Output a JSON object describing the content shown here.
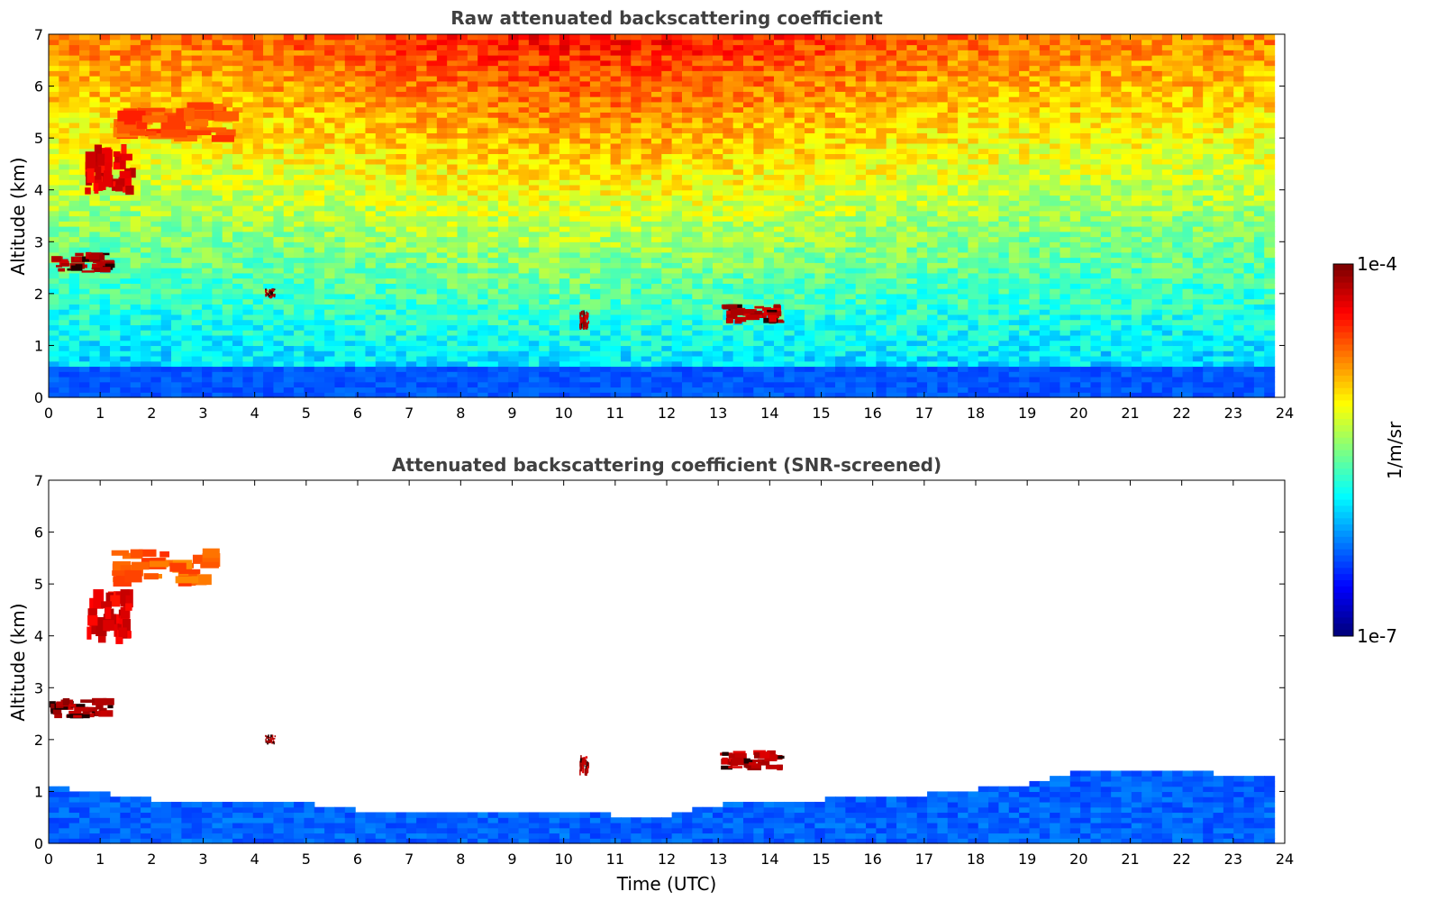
{
  "chart_data": [
    {
      "type": "heatmap",
      "title": "Raw attenuated backscattering coefficient",
      "xlabel": "",
      "ylabel": "Altitude (km)",
      "xlim": [
        0,
        24
      ],
      "ylim": [
        0,
        7
      ],
      "xticks": [
        "0",
        "1",
        "2",
        "3",
        "4",
        "5",
        "6",
        "7",
        "8",
        "9",
        "10",
        "11",
        "12",
        "13",
        "14",
        "15",
        "16",
        "17",
        "18",
        "19",
        "20",
        "21",
        "22",
        "23",
        "24"
      ],
      "yticks": [
        "0",
        "1",
        "2",
        "3",
        "4",
        "5",
        "6",
        "7"
      ],
      "data_end_time": 23.8,
      "colorscale": "jet",
      "features": [
        {
          "feature": "boundary layer",
          "t_range": [
            0,
            23.8
          ],
          "alt_range": [
            0,
            0.6
          ],
          "level": 0.2
        },
        {
          "feature": "noise background",
          "t_range": [
            0,
            23.8
          ],
          "alt_range": [
            0.6,
            7
          ],
          "level_range": [
            0.3,
            0.85
          ]
        },
        {
          "feature": "cloud layer",
          "t_range": [
            0,
            1.3
          ],
          "alt_range": [
            2.4,
            2.8
          ],
          "level": 0.97
        },
        {
          "feature": "cloud layer",
          "t_range": [
            0.7,
            1.7
          ],
          "alt_range": [
            3.9,
            4.9
          ],
          "level": 0.9
        },
        {
          "feature": "cloud layer",
          "t_range": [
            1.2,
            3.7
          ],
          "alt_range": [
            4.9,
            5.7
          ],
          "level": 0.8
        },
        {
          "feature": "cloud spot",
          "t_range": [
            4.2,
            4.4
          ],
          "alt_range": [
            1.9,
            2.1
          ],
          "level": 0.97
        },
        {
          "feature": "cloud spot",
          "t_range": [
            10.3,
            10.5
          ],
          "alt_range": [
            1.3,
            1.7
          ],
          "level": 0.95
        },
        {
          "feature": "cloud spot",
          "t_range": [
            13.0,
            14.3
          ],
          "alt_range": [
            1.4,
            1.8
          ],
          "level": 0.95
        }
      ]
    },
    {
      "type": "heatmap",
      "title": "Attenuated backscattering coefficient (SNR-screened)",
      "xlabel": "Time (UTC)",
      "ylabel": "Altitude (km)",
      "xlim": [
        0,
        24
      ],
      "ylim": [
        0,
        7
      ],
      "xticks": [
        "0",
        "1",
        "2",
        "3",
        "4",
        "5",
        "6",
        "7",
        "8",
        "9",
        "10",
        "11",
        "12",
        "13",
        "14",
        "15",
        "16",
        "17",
        "18",
        "19",
        "20",
        "21",
        "22",
        "23",
        "24"
      ],
      "yticks": [
        "0",
        "1",
        "2",
        "3",
        "4",
        "5",
        "6",
        "7"
      ],
      "data_end_time": 23.8,
      "colorscale": "jet",
      "boundary_layer_top": [
        [
          0,
          1.05
        ],
        [
          2,
          0.8
        ],
        [
          4,
          0.75
        ],
        [
          5,
          0.72
        ],
        [
          6,
          0.6
        ],
        [
          7,
          0.5
        ],
        [
          8,
          0.55
        ],
        [
          9,
          0.55
        ],
        [
          10,
          0.58
        ],
        [
          11,
          0.5
        ],
        [
          12,
          0.5
        ],
        [
          13,
          0.7
        ],
        [
          14,
          0.75
        ],
        [
          15,
          0.8
        ],
        [
          16,
          0.85
        ],
        [
          17,
          0.9
        ],
        [
          18,
          1.0
        ],
        [
          19,
          1.1
        ],
        [
          20,
          1.35
        ],
        [
          21,
          1.3
        ],
        [
          22,
          1.4
        ],
        [
          23,
          1.25
        ],
        [
          23.8,
          1.2
        ]
      ],
      "features": [
        {
          "feature": "cloud layer",
          "t_range": [
            0,
            1.3
          ],
          "alt_range": [
            2.4,
            2.8
          ],
          "level": 0.97
        },
        {
          "feature": "cloud layer",
          "t_range": [
            0.7,
            1.7
          ],
          "alt_range": [
            3.8,
            4.9
          ],
          "level": 0.9
        },
        {
          "feature": "cloud layer",
          "t_range": [
            1.2,
            3.4
          ],
          "alt_range": [
            4.9,
            5.7
          ],
          "level": 0.78
        },
        {
          "feature": "cloud spot",
          "t_range": [
            4.2,
            4.4
          ],
          "alt_range": [
            1.9,
            2.1
          ],
          "level": 0.97
        },
        {
          "feature": "cloud spot",
          "t_range": [
            10.3,
            10.5
          ],
          "alt_range": [
            1.3,
            1.7
          ],
          "level": 0.95
        },
        {
          "feature": "cloud spot",
          "t_range": [
            13.0,
            14.3
          ],
          "alt_range": [
            1.4,
            1.8
          ],
          "level": 0.95
        }
      ]
    }
  ],
  "colorbar": {
    "max_label": "1e-4",
    "min_label": "1e-7",
    "unit_label": "1/m/sr"
  }
}
